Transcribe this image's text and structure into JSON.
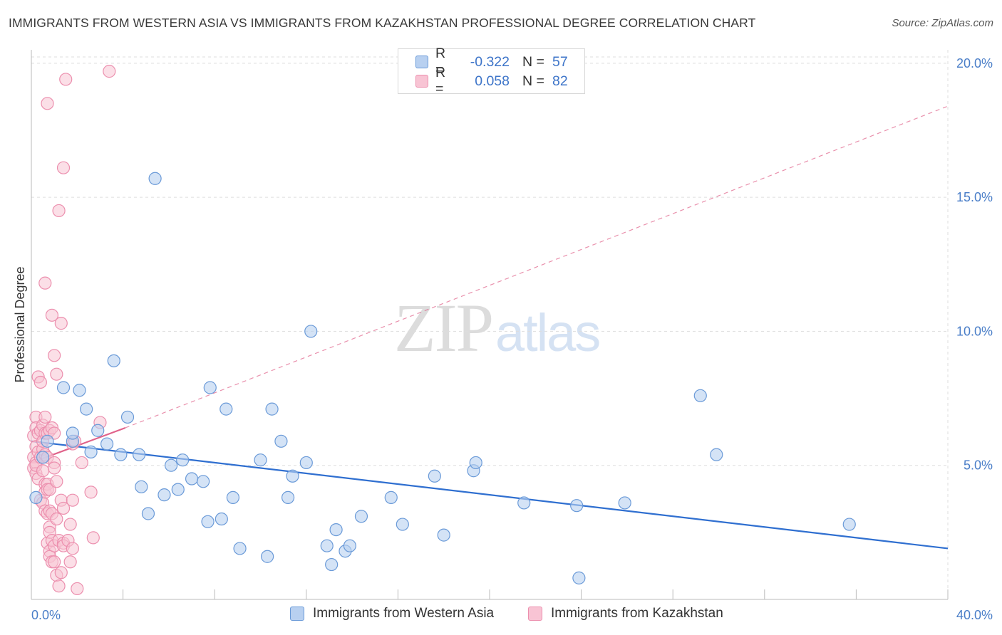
{
  "header": {
    "title": "IMMIGRANTS FROM WESTERN ASIA VS IMMIGRANTS FROM KAZAKHSTAN PROFESSIONAL DEGREE CORRELATION CHART",
    "source": "Source: ZipAtlas.com"
  },
  "watermark": {
    "zip": "ZIP",
    "atlas": "atlas"
  },
  "legend": {
    "r_label": "R =",
    "n_label": "N =",
    "series": [
      {
        "r": "-0.322",
        "n": "57"
      },
      {
        "r": "0.058",
        "n": "82"
      }
    ]
  },
  "bottom_legend": {
    "items": [
      "Immigrants from Western Asia",
      "Immigrants from Kazakhstan"
    ]
  },
  "colors": {
    "blue_fill": "#b8d0f0",
    "blue_stroke": "#6a9ad8",
    "blue_line": "#2f6fd0",
    "pink_fill": "#f8c4d4",
    "pink_stroke": "#ec8fae",
    "pink_line": "#e0628a",
    "axis_text": "#4a7ec8",
    "grid": "#dddddd"
  },
  "chart_data": {
    "type": "scatter",
    "title": "IMMIGRANTS FROM WESTERN ASIA VS IMMIGRANTS FROM KAZAKHSTAN PROFESSIONAL DEGREE CORRELATION CHART",
    "xlabel": "",
    "ylabel": "Professional Degree",
    "xlim": [
      0,
      40
    ],
    "ylim": [
      0,
      20.5
    ],
    "x_tick_labels": [
      "0.0%",
      "40.0%"
    ],
    "y_ticks": [
      5,
      10,
      15,
      20
    ],
    "y_tick_labels": [
      "5.0%",
      "10.0%",
      "15.0%",
      "20.0%"
    ],
    "grid": true,
    "legend_position": "top-center",
    "series": [
      {
        "name": "Immigrants from Western Asia",
        "r": -0.322,
        "n": 57,
        "trend": {
          "x": [
            0,
            40
          ],
          "y": [
            5.9,
            1.9
          ],
          "style": "solid"
        },
        "points": [
          [
            0.2,
            3.8
          ],
          [
            0.5,
            5.3
          ],
          [
            0.7,
            5.9
          ],
          [
            1.4,
            7.9
          ],
          [
            1.8,
            5.9
          ],
          [
            1.8,
            6.2
          ],
          [
            2.1,
            7.8
          ],
          [
            2.4,
            7.1
          ],
          [
            2.6,
            5.5
          ],
          [
            2.9,
            6.3
          ],
          [
            3.3,
            5.8
          ],
          [
            3.6,
            8.9
          ],
          [
            3.9,
            5.4
          ],
          [
            4.2,
            6.8
          ],
          [
            4.7,
            5.4
          ],
          [
            4.8,
            4.2
          ],
          [
            5.1,
            3.2
          ],
          [
            5.4,
            15.7
          ],
          [
            5.8,
            3.9
          ],
          [
            6.1,
            5.0
          ],
          [
            6.4,
            4.1
          ],
          [
            6.6,
            5.2
          ],
          [
            7.0,
            4.5
          ],
          [
            7.5,
            4.4
          ],
          [
            7.7,
            2.9
          ],
          [
            7.8,
            7.9
          ],
          [
            8.3,
            3.0
          ],
          [
            8.5,
            7.1
          ],
          [
            8.8,
            3.8
          ],
          [
            9.1,
            1.9
          ],
          [
            10.0,
            5.2
          ],
          [
            10.3,
            1.6
          ],
          [
            10.5,
            7.1
          ],
          [
            10.9,
            5.9
          ],
          [
            11.2,
            3.8
          ],
          [
            11.4,
            4.6
          ],
          [
            12.0,
            5.1
          ],
          [
            12.2,
            10.0
          ],
          [
            12.9,
            2.0
          ],
          [
            13.1,
            1.3
          ],
          [
            13.3,
            2.6
          ],
          [
            13.7,
            1.8
          ],
          [
            13.9,
            2.0
          ],
          [
            14.4,
            3.1
          ],
          [
            15.7,
            3.8
          ],
          [
            16.2,
            2.8
          ],
          [
            17.6,
            4.6
          ],
          [
            18.0,
            2.4
          ],
          [
            19.3,
            4.8
          ],
          [
            19.4,
            5.1
          ],
          [
            21.5,
            3.6
          ],
          [
            23.8,
            3.5
          ],
          [
            23.9,
            0.8
          ],
          [
            25.9,
            3.6
          ],
          [
            29.2,
            7.6
          ],
          [
            29.9,
            5.4
          ],
          [
            35.7,
            2.8
          ]
        ]
      },
      {
        "name": "Immigrants from Kazakhstan",
        "r": 0.058,
        "n": 82,
        "trend_solid": {
          "x": [
            0,
            4.1
          ],
          "y": [
            5.1,
            6.4
          ]
        },
        "trend_dashed": {
          "x": [
            4.1,
            40
          ],
          "y": [
            6.4,
            18.4
          ]
        },
        "points": [
          [
            0.1,
            6.1
          ],
          [
            0.1,
            5.3
          ],
          [
            0.1,
            4.9
          ],
          [
            0.2,
            6.8
          ],
          [
            0.2,
            5.7
          ],
          [
            0.2,
            5.1
          ],
          [
            0.2,
            4.7
          ],
          [
            0.2,
            6.4
          ],
          [
            0.2,
            5.0
          ],
          [
            0.3,
            5.5
          ],
          [
            0.3,
            4.5
          ],
          [
            0.3,
            6.2
          ],
          [
            0.3,
            8.3
          ],
          [
            0.4,
            8.1
          ],
          [
            0.4,
            5.3
          ],
          [
            0.4,
            3.7
          ],
          [
            0.4,
            6.3
          ],
          [
            0.5,
            5.6
          ],
          [
            0.5,
            3.6
          ],
          [
            0.5,
            5.9
          ],
          [
            0.5,
            4.8
          ],
          [
            0.5,
            6.5
          ],
          [
            0.6,
            6.8
          ],
          [
            0.6,
            6.2
          ],
          [
            0.6,
            5.4
          ],
          [
            0.6,
            4.3
          ],
          [
            0.6,
            3.3
          ],
          [
            0.6,
            4.0
          ],
          [
            0.6,
            11.8
          ],
          [
            0.7,
            6.2
          ],
          [
            0.7,
            4.3
          ],
          [
            0.7,
            5.3
          ],
          [
            0.7,
            4.1
          ],
          [
            0.7,
            3.2
          ],
          [
            0.7,
            2.1
          ],
          [
            0.7,
            18.5
          ],
          [
            0.8,
            6.3
          ],
          [
            0.8,
            4.1
          ],
          [
            0.8,
            3.3
          ],
          [
            0.8,
            2.7
          ],
          [
            0.8,
            2.5
          ],
          [
            0.8,
            1.8
          ],
          [
            0.8,
            1.6
          ],
          [
            0.9,
            6.4
          ],
          [
            0.9,
            10.6
          ],
          [
            0.9,
            3.2
          ],
          [
            0.9,
            2.2
          ],
          [
            0.9,
            1.4
          ],
          [
            1.0,
            6.2
          ],
          [
            1.0,
            5.1
          ],
          [
            1.0,
            4.9
          ],
          [
            1.0,
            9.1
          ],
          [
            1.0,
            2.0
          ],
          [
            1.0,
            1.4
          ],
          [
            1.1,
            8.4
          ],
          [
            1.1,
            4.4
          ],
          [
            1.1,
            3.0
          ],
          [
            1.1,
            0.9
          ],
          [
            1.2,
            14.5
          ],
          [
            1.2,
            2.2
          ],
          [
            1.2,
            0.5
          ],
          [
            1.3,
            10.3
          ],
          [
            1.3,
            3.7
          ],
          [
            1.3,
            1.0
          ],
          [
            1.4,
            16.1
          ],
          [
            1.4,
            3.4
          ],
          [
            1.4,
            2.1
          ],
          [
            1.4,
            2.0
          ],
          [
            1.5,
            19.4
          ],
          [
            1.6,
            2.2
          ],
          [
            1.7,
            2.8
          ],
          [
            1.7,
            1.4
          ],
          [
            1.8,
            5.8
          ],
          [
            1.8,
            3.7
          ],
          [
            1.8,
            1.9
          ],
          [
            1.9,
            5.9
          ],
          [
            2.0,
            0.4
          ],
          [
            2.2,
            5.1
          ],
          [
            2.6,
            4.0
          ],
          [
            2.7,
            2.3
          ],
          [
            3.0,
            6.6
          ],
          [
            3.4,
            19.7
          ]
        ]
      }
    ]
  }
}
